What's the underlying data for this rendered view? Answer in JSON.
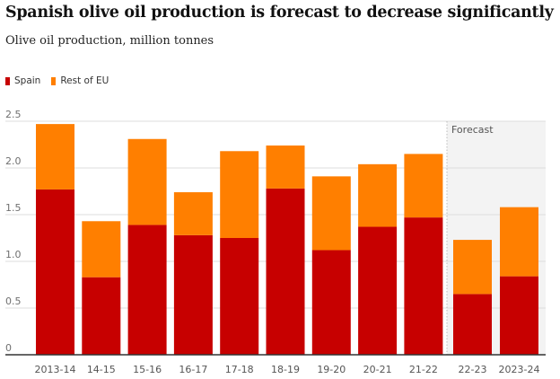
{
  "title": "Spanish olive oil production is forecast to decrease significantly",
  "subtitle": "Olive oil production, million tonnes",
  "colors": {
    "Spain": "#c70000",
    "Rest of EU": "#ff7f00",
    "forecast_bg": "#f3f3f3"
  },
  "chart_data": {
    "type": "bar",
    "stacked": true,
    "categories": [
      "2013-14",
      "14-15",
      "15-16",
      "16-17",
      "17-18",
      "18-19",
      "19-20",
      "20-21",
      "21-22",
      "22-23",
      "2023-24"
    ],
    "series": [
      {
        "name": "Spain",
        "values": [
          1.77,
          0.83,
          1.39,
          1.28,
          1.25,
          1.78,
          1.12,
          1.37,
          1.47,
          0.65,
          0.84
        ]
      },
      {
        "name": "Rest of EU",
        "values": [
          0.7,
          0.6,
          0.92,
          0.46,
          0.93,
          0.46,
          0.79,
          0.67,
          0.68,
          0.58,
          0.74
        ]
      }
    ],
    "yticks": [
      "0",
      "0.5",
      "1.0",
      "1.5",
      "2.0",
      "2.5"
    ],
    "ylim": [
      0,
      2.5
    ],
    "grid": true,
    "legend": "top-left",
    "annotation": "Forecast",
    "forecast_categories": [
      "22-23",
      "2023-24"
    ]
  }
}
